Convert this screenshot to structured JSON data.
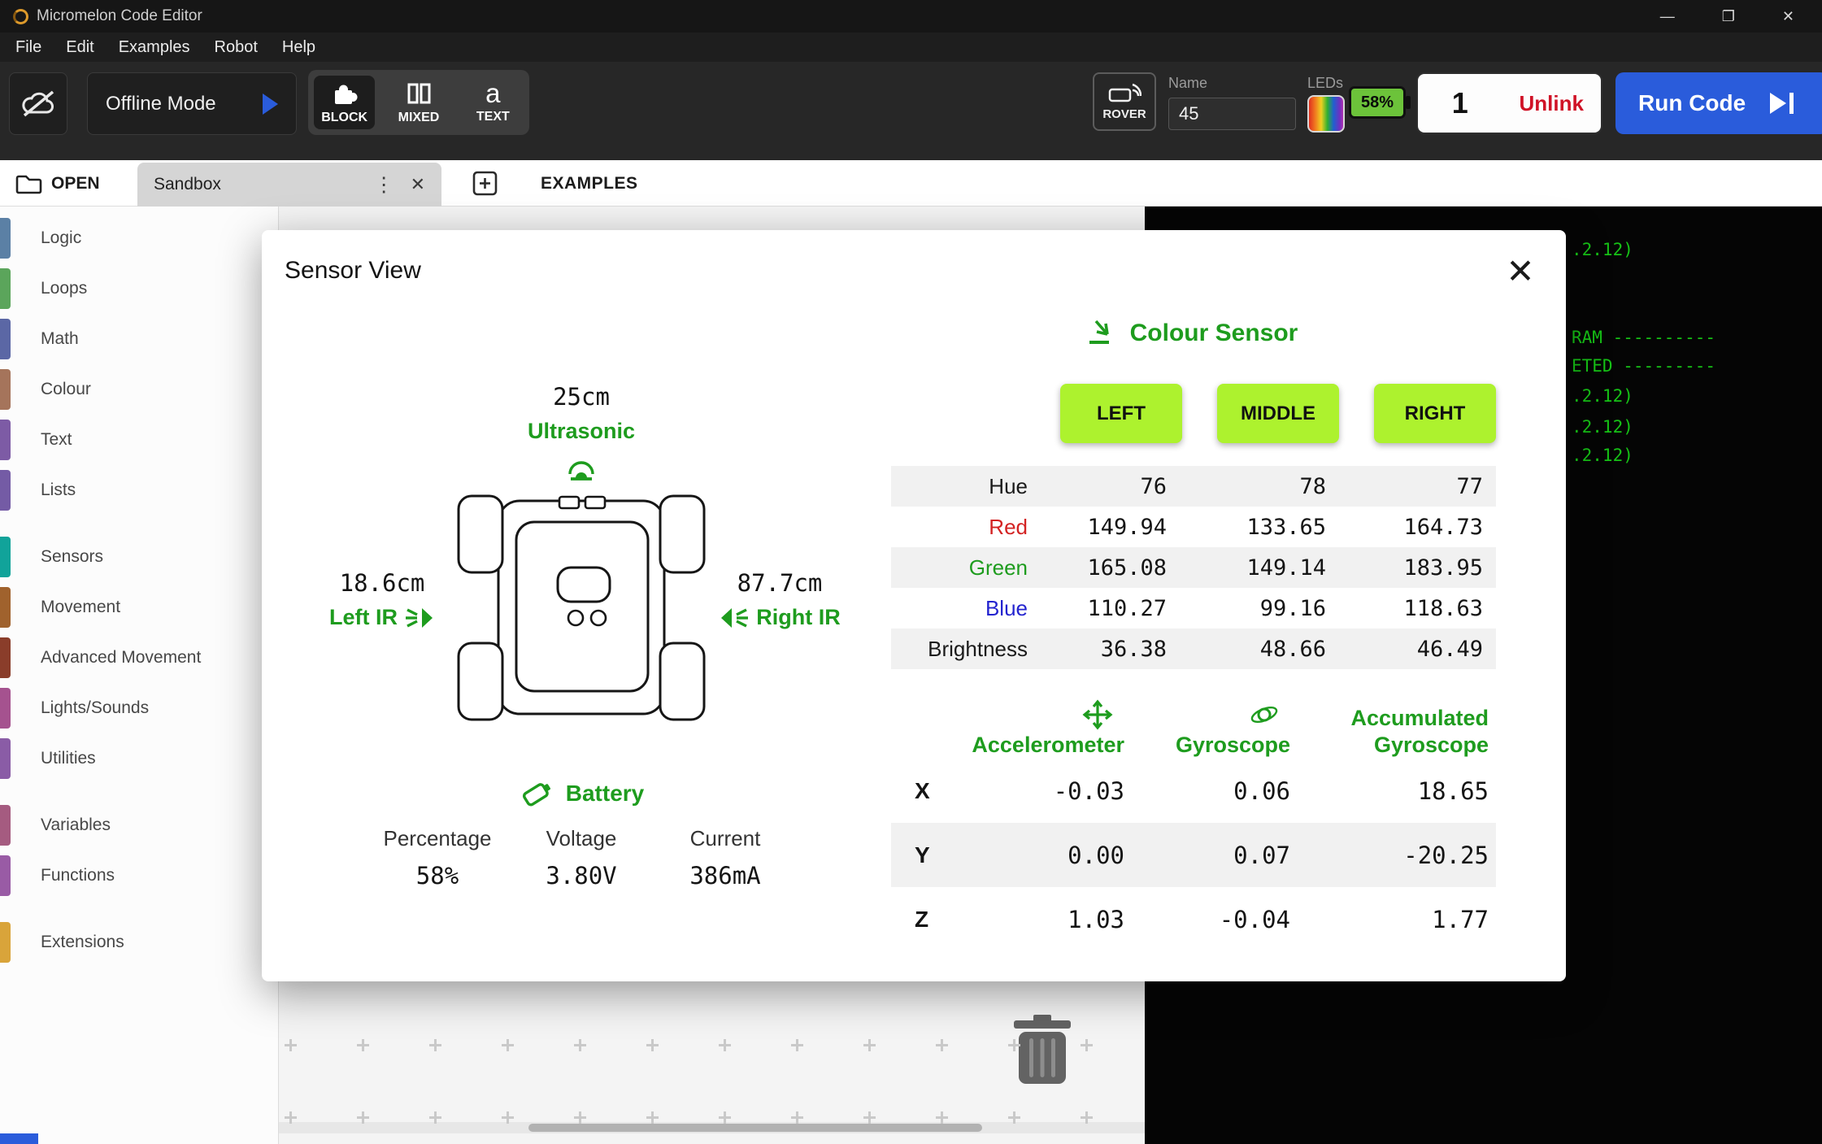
{
  "window": {
    "title": "Micromelon Code Editor",
    "controls": {
      "minimize": "—",
      "maximize": "❐",
      "close": "✕"
    }
  },
  "menu": {
    "items": [
      "File",
      "Edit",
      "Examples",
      "Robot",
      "Help"
    ]
  },
  "toolbar": {
    "offline_mode_label": "Offline Mode",
    "modes": [
      {
        "label": "BLOCK"
      },
      {
        "label": "MIXED"
      },
      {
        "label": "TEXT"
      }
    ],
    "active_mode": "BLOCK",
    "rover_label": "ROVER",
    "name_label": "Name",
    "name_value": "45",
    "leds_label": "LEDs",
    "battery_percent": "58%",
    "rover_number": "1",
    "unlink_label": "Unlink",
    "run_code_label": "Run Code"
  },
  "tab_bar": {
    "open_label": "OPEN",
    "tab_title": "Sandbox",
    "kebab_icon": "⋮",
    "close_icon": "✕",
    "examples_label": "EXAMPLES"
  },
  "sidebar": {
    "categories": [
      {
        "label": "Logic",
        "color": "#5b80a5"
      },
      {
        "label": "Loops",
        "color": "#5ba55b"
      },
      {
        "label": "Math",
        "color": "#5b67a5"
      },
      {
        "label": "Colour",
        "color": "#a5745b"
      },
      {
        "label": "Text",
        "color": "#7d5ba5"
      },
      {
        "label": "Lists",
        "color": "#745ba5"
      },
      {
        "label": "Sensors",
        "color": "#11a39a"
      },
      {
        "label": "Movement",
        "color": "#a0622d"
      },
      {
        "label": "Advanced Movement",
        "color": "#8a3d2a"
      },
      {
        "label": "Lights/Sounds",
        "color": "#a5528f"
      },
      {
        "label": "Utilities",
        "color": "#8a5ca6"
      },
      {
        "label": "Variables",
        "color": "#a55b80"
      },
      {
        "label": "Functions",
        "color": "#995ba5"
      },
      {
        "label": "Extensions",
        "color": "#d9a43a"
      }
    ]
  },
  "console": {
    "text_color": "#16c216",
    "lines": [
      ".2.12)",
      "RAM ----------",
      "ETED ---------",
      ".2.12)",
      ".2.12)",
      ".2.12)"
    ]
  },
  "modal": {
    "title": "Sensor View",
    "close_icon": "✕",
    "ultrasonic": {
      "value": "25cm",
      "label": "Ultrasonic"
    },
    "left_ir": {
      "value": "18.6cm",
      "label": "Left IR"
    },
    "right_ir": {
      "value": "87.7cm",
      "label": "Right IR"
    },
    "battery": {
      "label": "Battery",
      "fields": [
        {
          "name": "Percentage",
          "value": "58%"
        },
        {
          "name": "Voltage",
          "value": "3.80V"
        },
        {
          "name": "Current",
          "value": "386mA"
        }
      ]
    },
    "colour_sensor": {
      "label": "Colour Sensor",
      "buttons": [
        "LEFT",
        "MIDDLE",
        "RIGHT"
      ],
      "rows": [
        {
          "label": "Hue",
          "label_color": "#1a1a1a",
          "values": [
            "76",
            "78",
            "77"
          ]
        },
        {
          "label": "Red",
          "label_color": "#d32323",
          "values": [
            "149.94",
            "133.65",
            "164.73"
          ]
        },
        {
          "label": "Green",
          "label_color": "#1e9c1e",
          "values": [
            "165.08",
            "149.14",
            "183.95"
          ]
        },
        {
          "label": "Blue",
          "label_color": "#2424cf",
          "values": [
            "110.27",
            "99.16",
            "118.63"
          ]
        },
        {
          "label": "Brightness",
          "label_color": "#1a1a1a",
          "values": [
            "36.38",
            "48.66",
            "46.49"
          ]
        }
      ]
    },
    "imu": {
      "col1": "Accelerometer",
      "col2": "Gyroscope",
      "col3_line1": "Accumulated",
      "col3_line2": "Gyroscope",
      "rows": [
        {
          "axis": "X",
          "accel": "-0.03",
          "gyro": "0.06",
          "acc_gyro": "18.65"
        },
        {
          "axis": "Y",
          "accel": "0.00",
          "gyro": "0.07",
          "acc_gyro": "-20.25"
        },
        {
          "axis": "Z",
          "accel": "1.03",
          "gyro": "-0.04",
          "acc_gyro": "1.77"
        }
      ]
    }
  },
  "colors": {
    "accent_green": "#1e9c1e",
    "button_green": "#adf22e",
    "battery_green": "#6cc33a",
    "run_blue": "#2a5cdb",
    "unlink_red": "#d01226",
    "console_green": "#16c216"
  },
  "icons": {
    "text_mode_glyph": "a"
  }
}
